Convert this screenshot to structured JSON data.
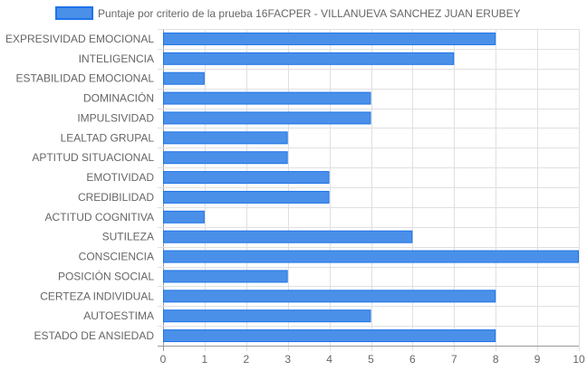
{
  "chart_data": {
    "type": "bar",
    "orientation": "horizontal",
    "categories": [
      "EXPRESIVIDAD EMOCIONAL",
      "INTELIGENCIA",
      "ESTABILIDAD EMOCIONAL",
      "DOMINACIÓN",
      "IMPULSIVIDAD",
      "LEALTAD GRUPAL",
      "APTITUD SITUACIONAL",
      "EMOTIVIDAD",
      "CREDIBILIDAD",
      "ACTITUD COGNITIVA",
      "SUTILEZA",
      "CONSCIENCIA",
      "POSICIÓN SOCIAL",
      "CERTEZA INDIVIDUAL",
      "AUTOESTIMA",
      "ESTADO DE ANSIEDAD"
    ],
    "series": [
      {
        "name": "Puntaje por criterio de la prueba 16FACPER - VILLANUEVA SANCHEZ JUAN ERUBEY",
        "values": [
          8,
          7,
          1,
          5,
          5,
          3,
          3,
          4,
          4,
          1,
          6,
          10,
          3,
          8,
          5,
          8
        ],
        "color": "#4a90e8",
        "border_color": "#1e73e8"
      }
    ],
    "xlim": [
      0,
      10
    ],
    "x_ticks": [
      "0",
      "1",
      "2",
      "3",
      "4",
      "5",
      "6",
      "7",
      "8",
      "9",
      "10"
    ],
    "grid": true,
    "legend_position": "top",
    "grid_color": "#e0e0e0",
    "axis_color": "#999999"
  }
}
